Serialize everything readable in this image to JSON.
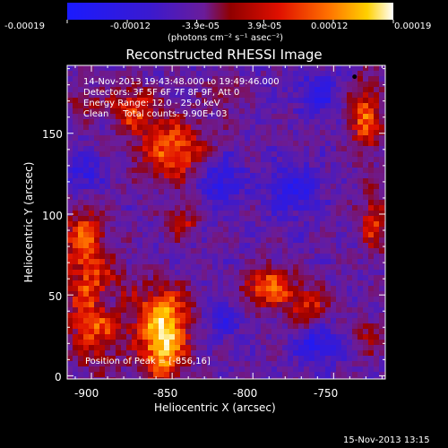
{
  "chart_data": {
    "type": "heatmap",
    "title": "Reconstructed RHESSI Image",
    "xlabel": "Heliocentric X (arcsec)",
    "ylabel": "Heliocentric Y (arcsec)",
    "xlim": [
      -915,
      -718
    ],
    "ylim": [
      -2,
      192
    ],
    "x_ticks": [
      -900,
      -850,
      -800,
      -750
    ],
    "y_ticks": [
      0,
      50,
      100,
      150
    ],
    "colorbar": {
      "range": [
        -0.00019,
        0.00019
      ],
      "tick_values": [
        -0.00019,
        -0.00012,
        -3.9e-05,
        3.9e-05,
        0.00012,
        0.00019
      ],
      "tick_labels": [
        "-0.00019",
        "-0.00012",
        "-3.9e-05",
        "3.9e-05",
        "0.00012",
        "0.00019"
      ],
      "unit_label": "(photons cm⁻² s⁻¹ asec⁻²)"
    },
    "annotations": [
      "14-Nov-2013 19:43:48.000 to 19:49:46.000",
      "Detectors: 3F 5F 6F 7F 8F 9F, Att 0",
      "Energy Range: 12.0 - 25.0 keV",
      "Clean     Total counts: 9.90E+03"
    ],
    "peak_label": "Position of Peak = [-856,16]",
    "peak": [
      -856,
      16
    ],
    "footer": "15-Nov-2013 13:15",
    "sources": [
      {
        "x": -856,
        "y": 16,
        "amp": 1.0,
        "sx": 10,
        "sy": 14
      },
      {
        "x": -855,
        "y": 40,
        "amp": 0.75,
        "sx": 12,
        "sy": 12
      },
      {
        "x": -897,
        "y": 40,
        "amp": 0.78,
        "sx": 13,
        "sy": 22
      },
      {
        "x": -905,
        "y": 85,
        "amp": 0.7,
        "sx": 9,
        "sy": 14
      },
      {
        "x": -850,
        "y": 140,
        "amp": 0.75,
        "sx": 15,
        "sy": 14
      },
      {
        "x": -875,
        "y": 165,
        "amp": 0.6,
        "sx": 10,
        "sy": 10
      },
      {
        "x": -845,
        "y": 95,
        "amp": 0.55,
        "sx": 7,
        "sy": 7
      },
      {
        "x": -790,
        "y": 55,
        "amp": 0.8,
        "sx": 11,
        "sy": 9
      },
      {
        "x": -765,
        "y": 42,
        "amp": 0.55,
        "sx": 9,
        "sy": 9
      },
      {
        "x": -730,
        "y": 160,
        "amp": 0.75,
        "sx": 7,
        "sy": 15
      },
      {
        "x": -725,
        "y": 95,
        "amp": 0.6,
        "sx": 6,
        "sy": 13
      },
      {
        "x": -728,
        "y": 25,
        "amp": 0.4,
        "sx": 6,
        "sy": 8
      },
      {
        "x": -905,
        "y": 170,
        "amp": 0.35,
        "sx": 7,
        "sy": 7
      },
      {
        "x": -818,
        "y": 175,
        "amp": 0.3,
        "sx": 8,
        "sy": 8
      }
    ],
    "negative_sources": [
      {
        "x": -890,
        "y": 45,
        "amp": -0.55,
        "sx": 6,
        "sy": 6
      },
      {
        "x": -820,
        "y": 120,
        "amp": -0.5,
        "sx": 10,
        "sy": 10
      },
      {
        "x": -775,
        "y": 115,
        "amp": -0.55,
        "sx": 10,
        "sy": 10
      },
      {
        "x": -760,
        "y": 20,
        "amp": -0.55,
        "sx": 10,
        "sy": 8
      },
      {
        "x": -905,
        "y": 125,
        "amp": -0.45,
        "sx": 8,
        "sy": 8
      },
      {
        "x": -820,
        "y": 35,
        "amp": -0.4,
        "sx": 8,
        "sy": 8
      },
      {
        "x": -760,
        "y": 175,
        "amp": -0.5,
        "sx": 9,
        "sy": 8
      }
    ]
  }
}
